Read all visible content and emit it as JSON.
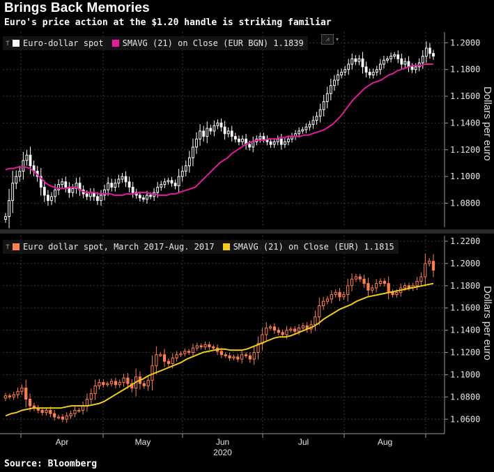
{
  "header": {
    "title": "Brings Back Memories",
    "subtitle": "Euro's price action at the $1.20 handle is striking familiar"
  },
  "footer": {
    "source": "Source: Bloomberg"
  },
  "colors": {
    "white_series": "#ffffff",
    "magenta_ma": "#e6199c",
    "orange_series": "#ff7f4d",
    "yellow_ma": "#f2cc1a",
    "grid": "#3a3a3a",
    "axis": "#9a9a9a"
  },
  "toolbox": {
    "icon": "line-chart-icon",
    "dropdown_glyph": "▾"
  },
  "chart_data": [
    {
      "type": "candlestick",
      "panel": "top",
      "legend": [
        {
          "pin": "⊤",
          "label": "Euro-dollar spot",
          "color": "#ffffff"
        },
        {
          "label": "SMAVG (21)  on Close (EUR BGN) 1.1839",
          "color": "#e6199c"
        }
      ],
      "ylabel": "Dollars per euro",
      "yticks": [
        "1.0800",
        "1.1000",
        "1.1200",
        "1.1400",
        "1.1600",
        "1.1800",
        "1.2000"
      ],
      "ylim": [
        1.062,
        1.208
      ],
      "series": [
        {
          "name": "Euro-dollar spot",
          "close": [
            1.07,
            1.082,
            1.095,
            1.1,
            1.104,
            1.112,
            1.116,
            1.108,
            1.104,
            1.1,
            1.092,
            1.086,
            1.082,
            1.085,
            1.09,
            1.094,
            1.096,
            1.092,
            1.088,
            1.091,
            1.095,
            1.09,
            1.087,
            1.085,
            1.088,
            1.085,
            1.082,
            1.086,
            1.09,
            1.095,
            1.092,
            1.095,
            1.098,
            1.1,
            1.096,
            1.092,
            1.088,
            1.086,
            1.084,
            1.083,
            1.086,
            1.085,
            1.088,
            1.092,
            1.094,
            1.096,
            1.097,
            1.095,
            1.093,
            1.1,
            1.104,
            1.108,
            1.114,
            1.122,
            1.128,
            1.134,
            1.13,
            1.136,
            1.134,
            1.138,
            1.14,
            1.137,
            1.132,
            1.134,
            1.13,
            1.128,
            1.126,
            1.128,
            1.124,
            1.122,
            1.126,
            1.128,
            1.13,
            1.128,
            1.126,
            1.124,
            1.126,
            1.128,
            1.124,
            1.126,
            1.128,
            1.13,
            1.132,
            1.134,
            1.135,
            1.137,
            1.139,
            1.142,
            1.145,
            1.15,
            1.156,
            1.162,
            1.168,
            1.172,
            1.176,
            1.178,
            1.18,
            1.184,
            1.188,
            1.186,
            1.188,
            1.182,
            1.178,
            1.176,
            1.178,
            1.18,
            1.184,
            1.187,
            1.188,
            1.19,
            1.191,
            1.188,
            1.184,
            1.186,
            1.182,
            1.18,
            1.182,
            1.185,
            1.19,
            1.196,
            1.192,
            1.19
          ],
          "ma": [
            1.105,
            1.106,
            1.106,
            1.107,
            1.107,
            1.107,
            1.106,
            1.104,
            1.101,
            1.098,
            1.095,
            1.093,
            1.092,
            1.091,
            1.091,
            1.091,
            1.092,
            1.092,
            1.091,
            1.089,
            1.088,
            1.088,
            1.088,
            1.087,
            1.087,
            1.087,
            1.087,
            1.086,
            1.086,
            1.086,
            1.087,
            1.087,
            1.087,
            1.088,
            1.088,
            1.088,
            1.087,
            1.087,
            1.086,
            1.086,
            1.086,
            1.087,
            1.087,
            1.088,
            1.089,
            1.09,
            1.091,
            1.092,
            1.095,
            1.098,
            1.101,
            1.104,
            1.107,
            1.11,
            1.112,
            1.114,
            1.117,
            1.119,
            1.121,
            1.123,
            1.125,
            1.126,
            1.127,
            1.127,
            1.127,
            1.128,
            1.128,
            1.128,
            1.129,
            1.129,
            1.13,
            1.13,
            1.13,
            1.13,
            1.131,
            1.131,
            1.132,
            1.133,
            1.134,
            1.135,
            1.137,
            1.139,
            1.142,
            1.145,
            1.149,
            1.153,
            1.157,
            1.16,
            1.163,
            1.166,
            1.168,
            1.17,
            1.171,
            1.172,
            1.174,
            1.176,
            1.177,
            1.179,
            1.18,
            1.181,
            1.182,
            1.183,
            1.183,
            1.183,
            1.184,
            1.184,
            1.184
          ]
        }
      ]
    },
    {
      "type": "candlestick",
      "panel": "bottom",
      "legend": [
        {
          "pin": "⊤",
          "label": "Euro dollar spot, March 2017-Aug. 2017",
          "color": "#ff7f4d"
        },
        {
          "label": "SMAVG (21)  on Close (EUR) 1.1815",
          "color": "#f2cc1a"
        }
      ],
      "ylabel": "Dollars per euro",
      "yticks": [
        "1.0600",
        "1.0800",
        "1.1000",
        "1.1200",
        "1.1400",
        "1.1600",
        "1.1800",
        "1.2000",
        "1.2200"
      ],
      "ylim": [
        1.047,
        1.225
      ],
      "x_axis": {
        "labels": [
          "Apr",
          "May",
          "Jun",
          "Jul",
          "Aug"
        ],
        "year": "2020"
      },
      "series": [
        {
          "name": "Euro dollar spot, March 2017-Aug. 2017",
          "close": [
            1.081,
            1.08,
            1.082,
            1.085,
            1.088,
            1.078,
            1.072,
            1.07,
            1.068,
            1.066,
            1.068,
            1.065,
            1.062,
            1.062,
            1.06,
            1.063,
            1.065,
            1.068,
            1.068,
            1.072,
            1.078,
            1.083,
            1.09,
            1.093,
            1.091,
            1.092,
            1.094,
            1.091,
            1.093,
            1.097,
            1.092,
            1.088,
            1.098,
            1.092,
            1.09,
            1.095,
            1.108,
            1.118,
            1.118,
            1.112,
            1.11,
            1.115,
            1.118,
            1.119,
            1.121,
            1.12,
            1.124,
            1.126,
            1.125,
            1.127,
            1.125,
            1.124,
            1.121,
            1.118,
            1.117,
            1.115,
            1.116,
            1.114,
            1.118,
            1.117,
            1.114,
            1.12,
            1.128,
            1.136,
            1.142,
            1.143,
            1.14,
            1.138,
            1.136,
            1.14,
            1.141,
            1.139,
            1.142,
            1.144,
            1.141,
            1.145,
            1.152,
            1.162,
            1.166,
            1.168,
            1.172,
            1.174,
            1.17,
            1.172,
            1.18,
            1.186,
            1.188,
            1.186,
            1.182,
            1.176,
            1.178,
            1.182,
            1.184,
            1.182,
            1.174,
            1.172,
            1.174,
            1.178,
            1.18,
            1.178,
            1.18,
            1.184,
            1.188,
            1.2,
            1.202,
            1.194
          ],
          "ma": [
            1.063,
            1.065,
            1.066,
            1.068,
            1.069,
            1.07,
            1.07,
            1.07,
            1.07,
            1.07,
            1.07,
            1.071,
            1.072,
            1.072,
            1.072,
            1.072,
            1.073,
            1.074,
            1.076,
            1.079,
            1.082,
            1.085,
            1.088,
            1.091,
            1.094,
            1.096,
            1.099,
            1.101,
            1.103,
            1.105,
            1.107,
            1.109,
            1.111,
            1.114,
            1.116,
            1.118,
            1.12,
            1.121,
            1.122,
            1.123,
            1.123,
            1.122,
            1.122,
            1.122,
            1.123,
            1.125,
            1.127,
            1.129,
            1.131,
            1.133,
            1.134,
            1.134,
            1.135,
            1.137,
            1.139,
            1.141,
            1.143,
            1.146,
            1.15,
            1.153,
            1.156,
            1.159,
            1.161,
            1.163,
            1.166,
            1.168,
            1.17,
            1.171,
            1.172,
            1.173,
            1.174,
            1.175,
            1.176,
            1.177,
            1.178,
            1.179,
            1.18,
            1.181,
            1.182
          ]
        }
      ]
    }
  ]
}
